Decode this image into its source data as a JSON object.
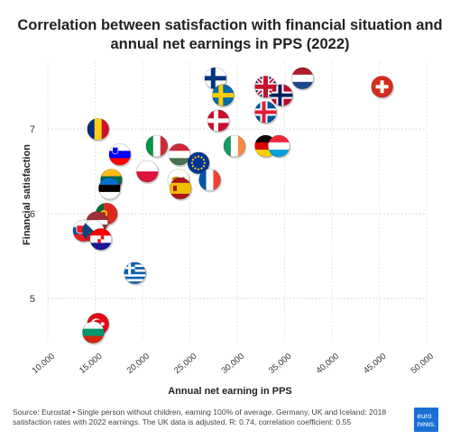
{
  "title_line1": "Correlation between satisfaction with financial situation and",
  "title_line2": "annual net earnings in PPS (2022)",
  "source_text": "Source: Eurostat • Single person without children, earning 100% of average. Germany, UK and Iceland: 2018 satisfaction rates with 2022 earnings. The UK data is adjusted. R: 0.74, correlation coefficient: 0.55",
  "logo_text": "euro news.",
  "chart_data": {
    "type": "scatter",
    "title": "Correlation between satisfaction with financial situation and annual net earnings in PPS (2022)",
    "xlabel": "Annual net earning in PPS",
    "ylabel": "Financial satisfaction",
    "xlim": [
      10000,
      50000
    ],
    "ylim": [
      4.5,
      7.8
    ],
    "x_ticks": [
      10000,
      15000,
      20000,
      25000,
      30000,
      35000,
      40000,
      45000,
      50000
    ],
    "x_tick_labels": [
      "10,000",
      "15,000",
      "20,000",
      "25,000",
      "30,000",
      "35,000",
      "40,000",
      "45,000",
      "50,000"
    ],
    "y_ticks": [
      5,
      6,
      7
    ],
    "grid": true,
    "points": [
      {
        "country": "Switzerland",
        "x": 45300,
        "y": 7.5,
        "flag": "ch"
      },
      {
        "country": "Netherlands",
        "x": 36900,
        "y": 7.6,
        "flag": "nl"
      },
      {
        "country": "Finland",
        "x": 27700,
        "y": 7.6,
        "flag": "fi"
      },
      {
        "country": "United Kingdom",
        "x": 33000,
        "y": 7.5,
        "flag": "gb"
      },
      {
        "country": "Norway",
        "x": 34700,
        "y": 7.4,
        "flag": "no"
      },
      {
        "country": "Sweden",
        "x": 28500,
        "y": 7.4,
        "flag": "se"
      },
      {
        "country": "Iceland",
        "x": 33000,
        "y": 7.2,
        "flag": "is"
      },
      {
        "country": "Denmark",
        "x": 28000,
        "y": 7.1,
        "flag": "dk"
      },
      {
        "country": "Romania",
        "x": 15300,
        "y": 7.0,
        "flag": "ro"
      },
      {
        "country": "Italy",
        "x": 21500,
        "y": 6.8,
        "flag": "it"
      },
      {
        "country": "Ireland",
        "x": 29700,
        "y": 6.8,
        "flag": "ie"
      },
      {
        "country": "Germany",
        "x": 33000,
        "y": 6.8,
        "flag": "de"
      },
      {
        "country": "Luxembourg",
        "x": 34400,
        "y": 6.8,
        "flag": "lu"
      },
      {
        "country": "Slovenia",
        "x": 17600,
        "y": 6.7,
        "flag": "si"
      },
      {
        "country": "Hungary",
        "x": 23900,
        "y": 6.7,
        "flag": "hu"
      },
      {
        "country": "EU",
        "x": 25900,
        "y": 6.6,
        "flag": "eu"
      },
      {
        "country": "Poland",
        "x": 20500,
        "y": 6.5,
        "flag": "pl"
      },
      {
        "country": "Lithuania",
        "x": 16700,
        "y": 6.4,
        "flag": "lt"
      },
      {
        "country": "Greece (front)",
        "x": 23800,
        "y": 6.4,
        "flag": "cy"
      },
      {
        "country": "France",
        "x": 27100,
        "y": 6.4,
        "flag": "fr"
      },
      {
        "country": "Estonia",
        "x": 16500,
        "y": 6.3,
        "flag": "ee"
      },
      {
        "country": "Spain",
        "x": 24000,
        "y": 6.3,
        "flag": "es"
      },
      {
        "country": "Portugal",
        "x": 16200,
        "y": 6.0,
        "flag": "pt"
      },
      {
        "country": "Latvia",
        "x": 15200,
        "y": 5.9,
        "flag": "lv"
      },
      {
        "country": "Slovakia",
        "x": 13800,
        "y": 5.8,
        "flag": "sk"
      },
      {
        "country": "Czechia",
        "x": 14800,
        "y": 5.8,
        "flag": "cz"
      },
      {
        "country": "Croatia",
        "x": 15600,
        "y": 5.7,
        "flag": "hr"
      },
      {
        "country": "Greece",
        "x": 19200,
        "y": 5.3,
        "flag": "gr"
      },
      {
        "country": "Türkiye",
        "x": 15300,
        "y": 4.7,
        "flag": "tr"
      },
      {
        "country": "Bulgaria",
        "x": 14800,
        "y": 4.6,
        "flag": "bg"
      }
    ]
  }
}
